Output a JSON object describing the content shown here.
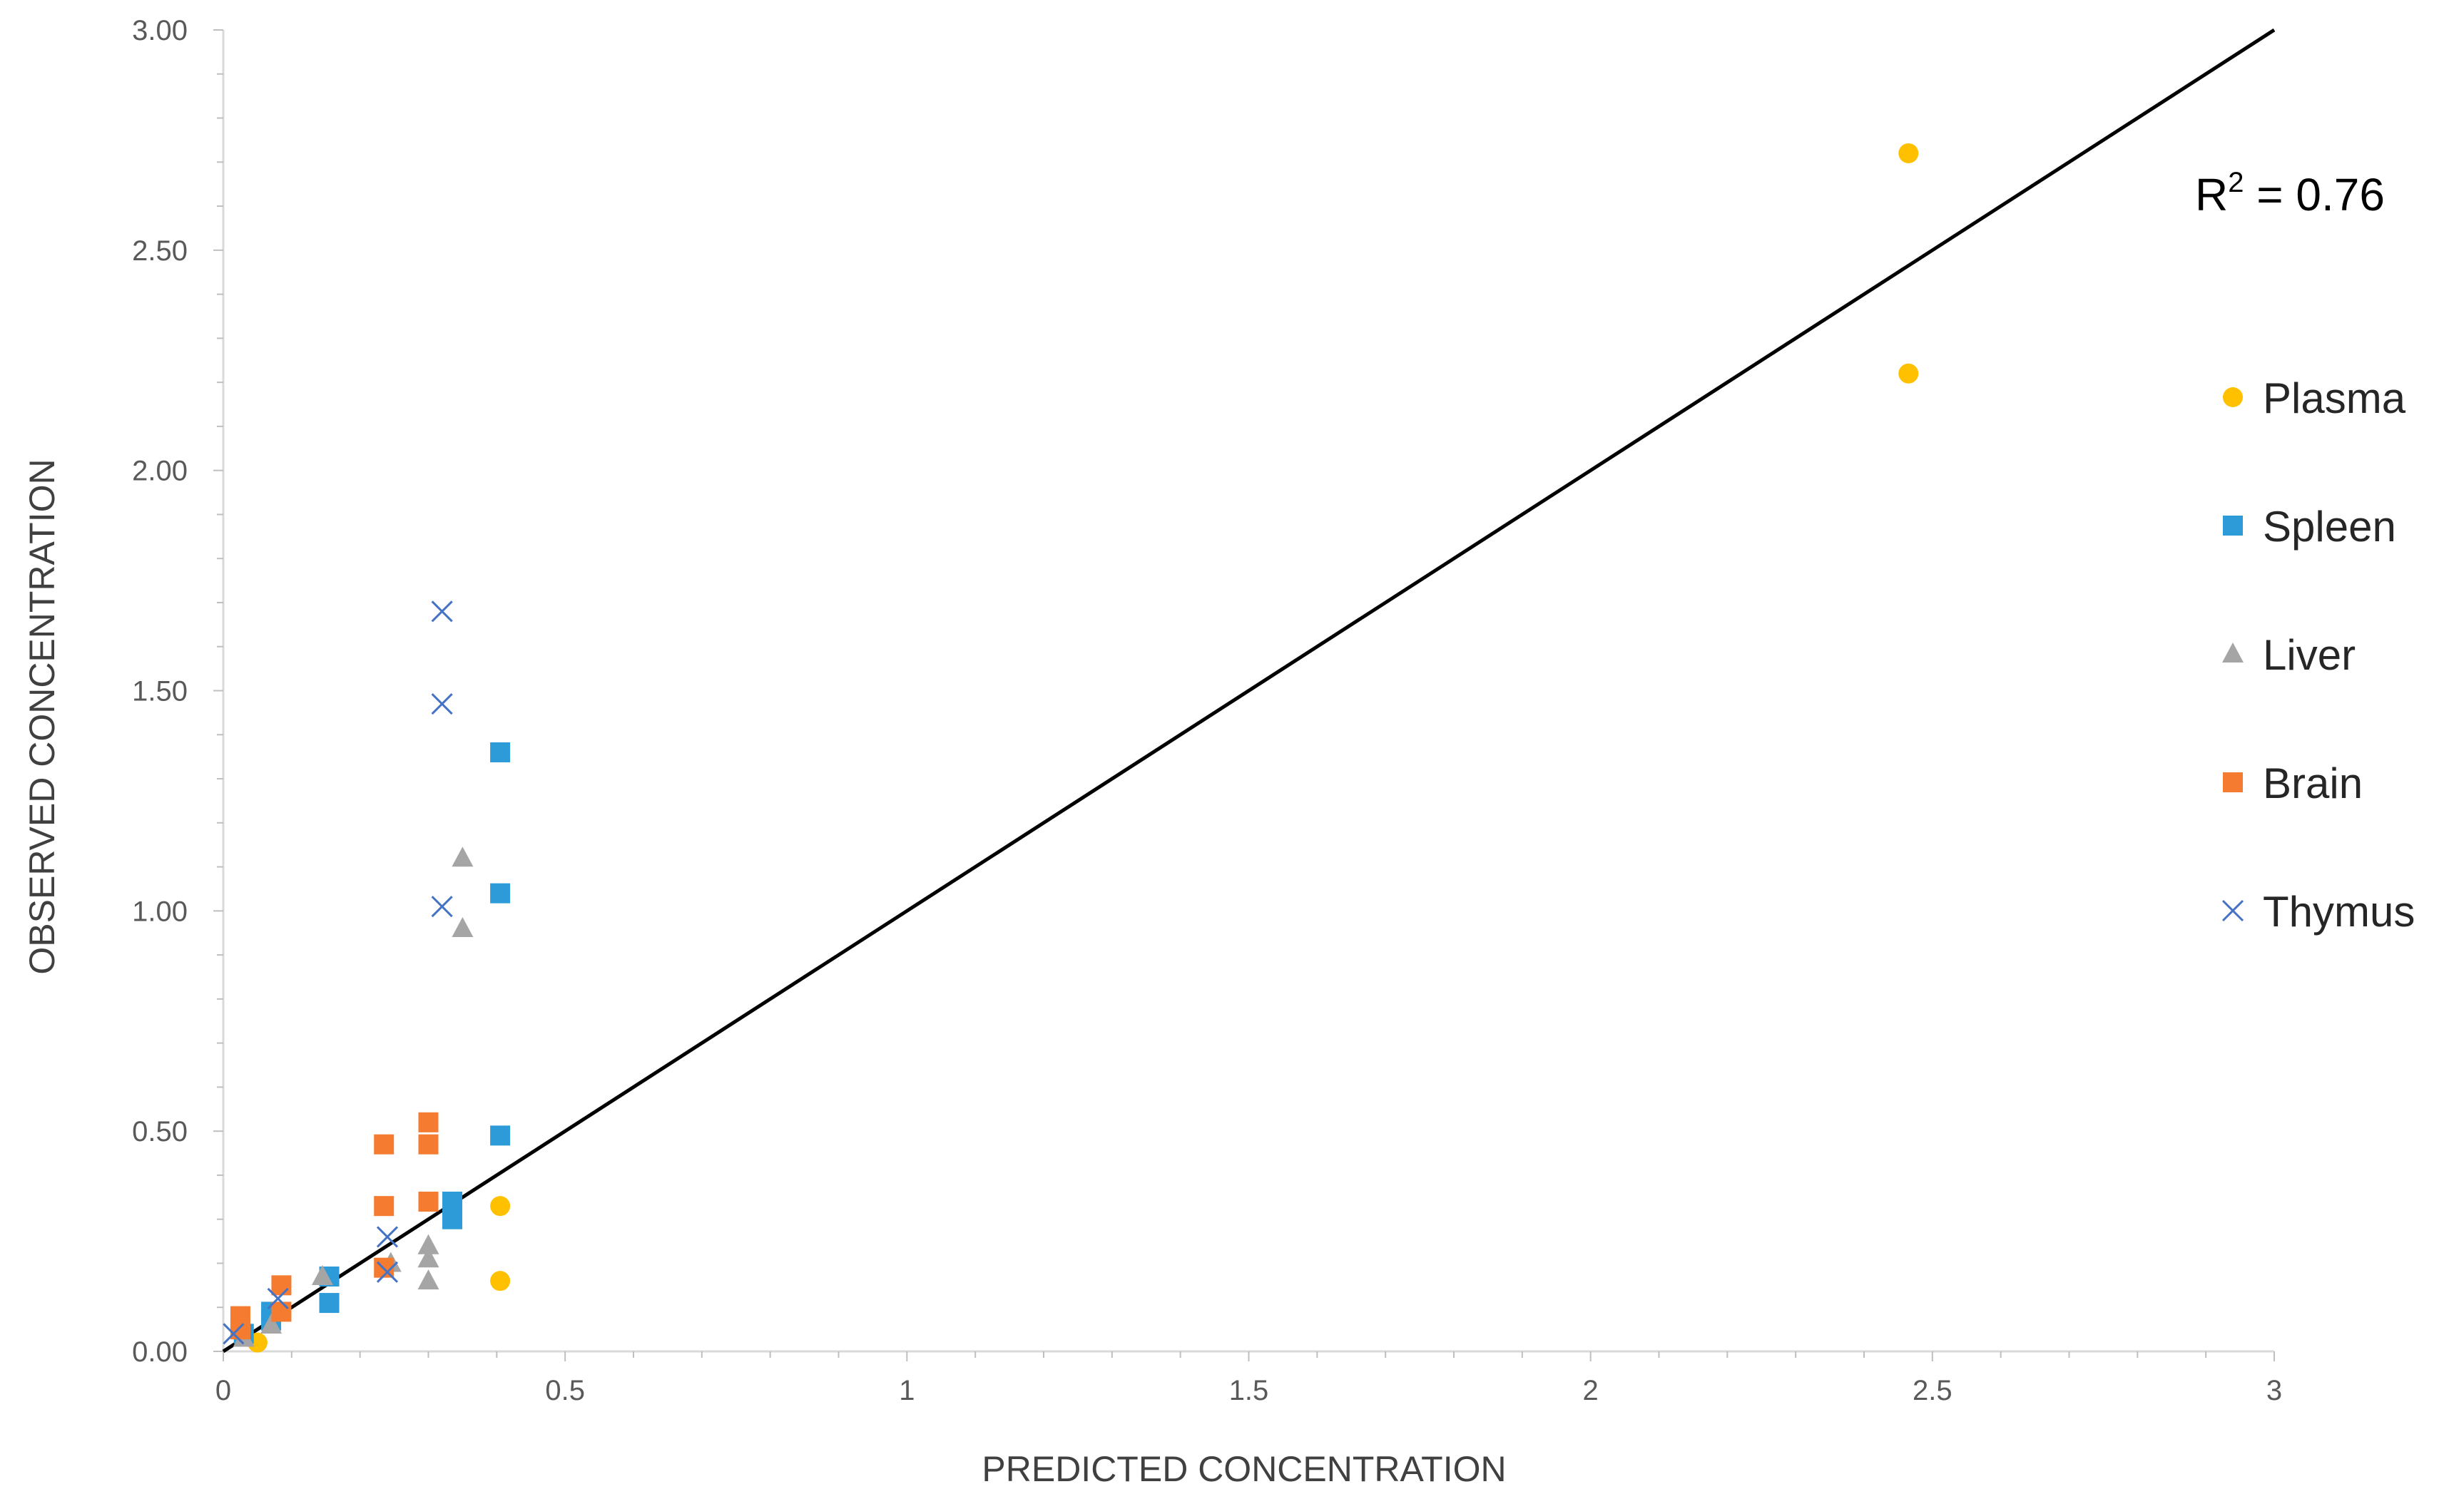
{
  "chart_data": {
    "type": "scatter",
    "title": "",
    "xlabel": "PREDICTED CONCENTRATION",
    "ylabel": "OBSERVED CONCENTRATION",
    "xlim": [
      0,
      3
    ],
    "ylim": [
      0,
      3
    ],
    "x_ticks": [
      "0",
      "0.5",
      "1",
      "1.5",
      "2",
      "2.5",
      "3"
    ],
    "y_ticks": [
      "0.00",
      "0.50",
      "1.00",
      "1.50",
      "2.00",
      "2.50",
      "3.00"
    ],
    "grid": false,
    "legend_position": "right",
    "annotation": {
      "r2_prefix": "R",
      "r2_sup": "2",
      "r2_value": " = 0.76"
    },
    "identity_line": {
      "x": [
        0,
        3
      ],
      "y": [
        0,
        3
      ]
    },
    "series": [
      {
        "name": "Plasma",
        "marker": "circle",
        "color": "#FFC000",
        "points": [
          [
            0.05,
            0.02
          ],
          [
            0.405,
            0.33
          ],
          [
            0.405,
            0.16
          ],
          [
            2.465,
            2.72
          ],
          [
            2.465,
            2.22
          ]
        ]
      },
      {
        "name": "Spleen",
        "marker": "square",
        "color": "#2E9BD9",
        "points": [
          [
            0.03,
            0.04
          ],
          [
            0.07,
            0.09
          ],
          [
            0.07,
            0.07
          ],
          [
            0.155,
            0.17
          ],
          [
            0.155,
            0.11
          ],
          [
            0.335,
            0.34
          ],
          [
            0.335,
            0.3
          ],
          [
            0.405,
            1.36
          ],
          [
            0.405,
            1.04
          ],
          [
            0.405,
            0.49
          ]
        ]
      },
      {
        "name": "Liver",
        "marker": "triangle",
        "color": "#A5A5A5",
        "points": [
          [
            0.03,
            0.03
          ],
          [
            0.07,
            0.06
          ],
          [
            0.145,
            0.17
          ],
          [
            0.245,
            0.2
          ],
          [
            0.3,
            0.24
          ],
          [
            0.3,
            0.21
          ],
          [
            0.3,
            0.16
          ],
          [
            0.35,
            1.12
          ],
          [
            0.35,
            0.96
          ]
        ]
      },
      {
        "name": "Brain",
        "marker": "square",
        "color": "#F47B30",
        "points": [
          [
            0.025,
            0.08
          ],
          [
            0.025,
            0.05
          ],
          [
            0.085,
            0.15
          ],
          [
            0.085,
            0.09
          ],
          [
            0.235,
            0.47
          ],
          [
            0.235,
            0.33
          ],
          [
            0.235,
            0.19
          ],
          [
            0.3,
            0.52
          ],
          [
            0.3,
            0.47
          ],
          [
            0.3,
            0.34
          ]
        ]
      },
      {
        "name": "Thymus",
        "marker": "x",
        "color": "#4472C4",
        "points": [
          [
            0.015,
            0.04
          ],
          [
            0.08,
            0.12
          ],
          [
            0.24,
            0.26
          ],
          [
            0.24,
            0.18
          ],
          [
            0.32,
            1.68
          ],
          [
            0.32,
            1.47
          ],
          [
            0.32,
            1.01
          ]
        ]
      }
    ]
  }
}
